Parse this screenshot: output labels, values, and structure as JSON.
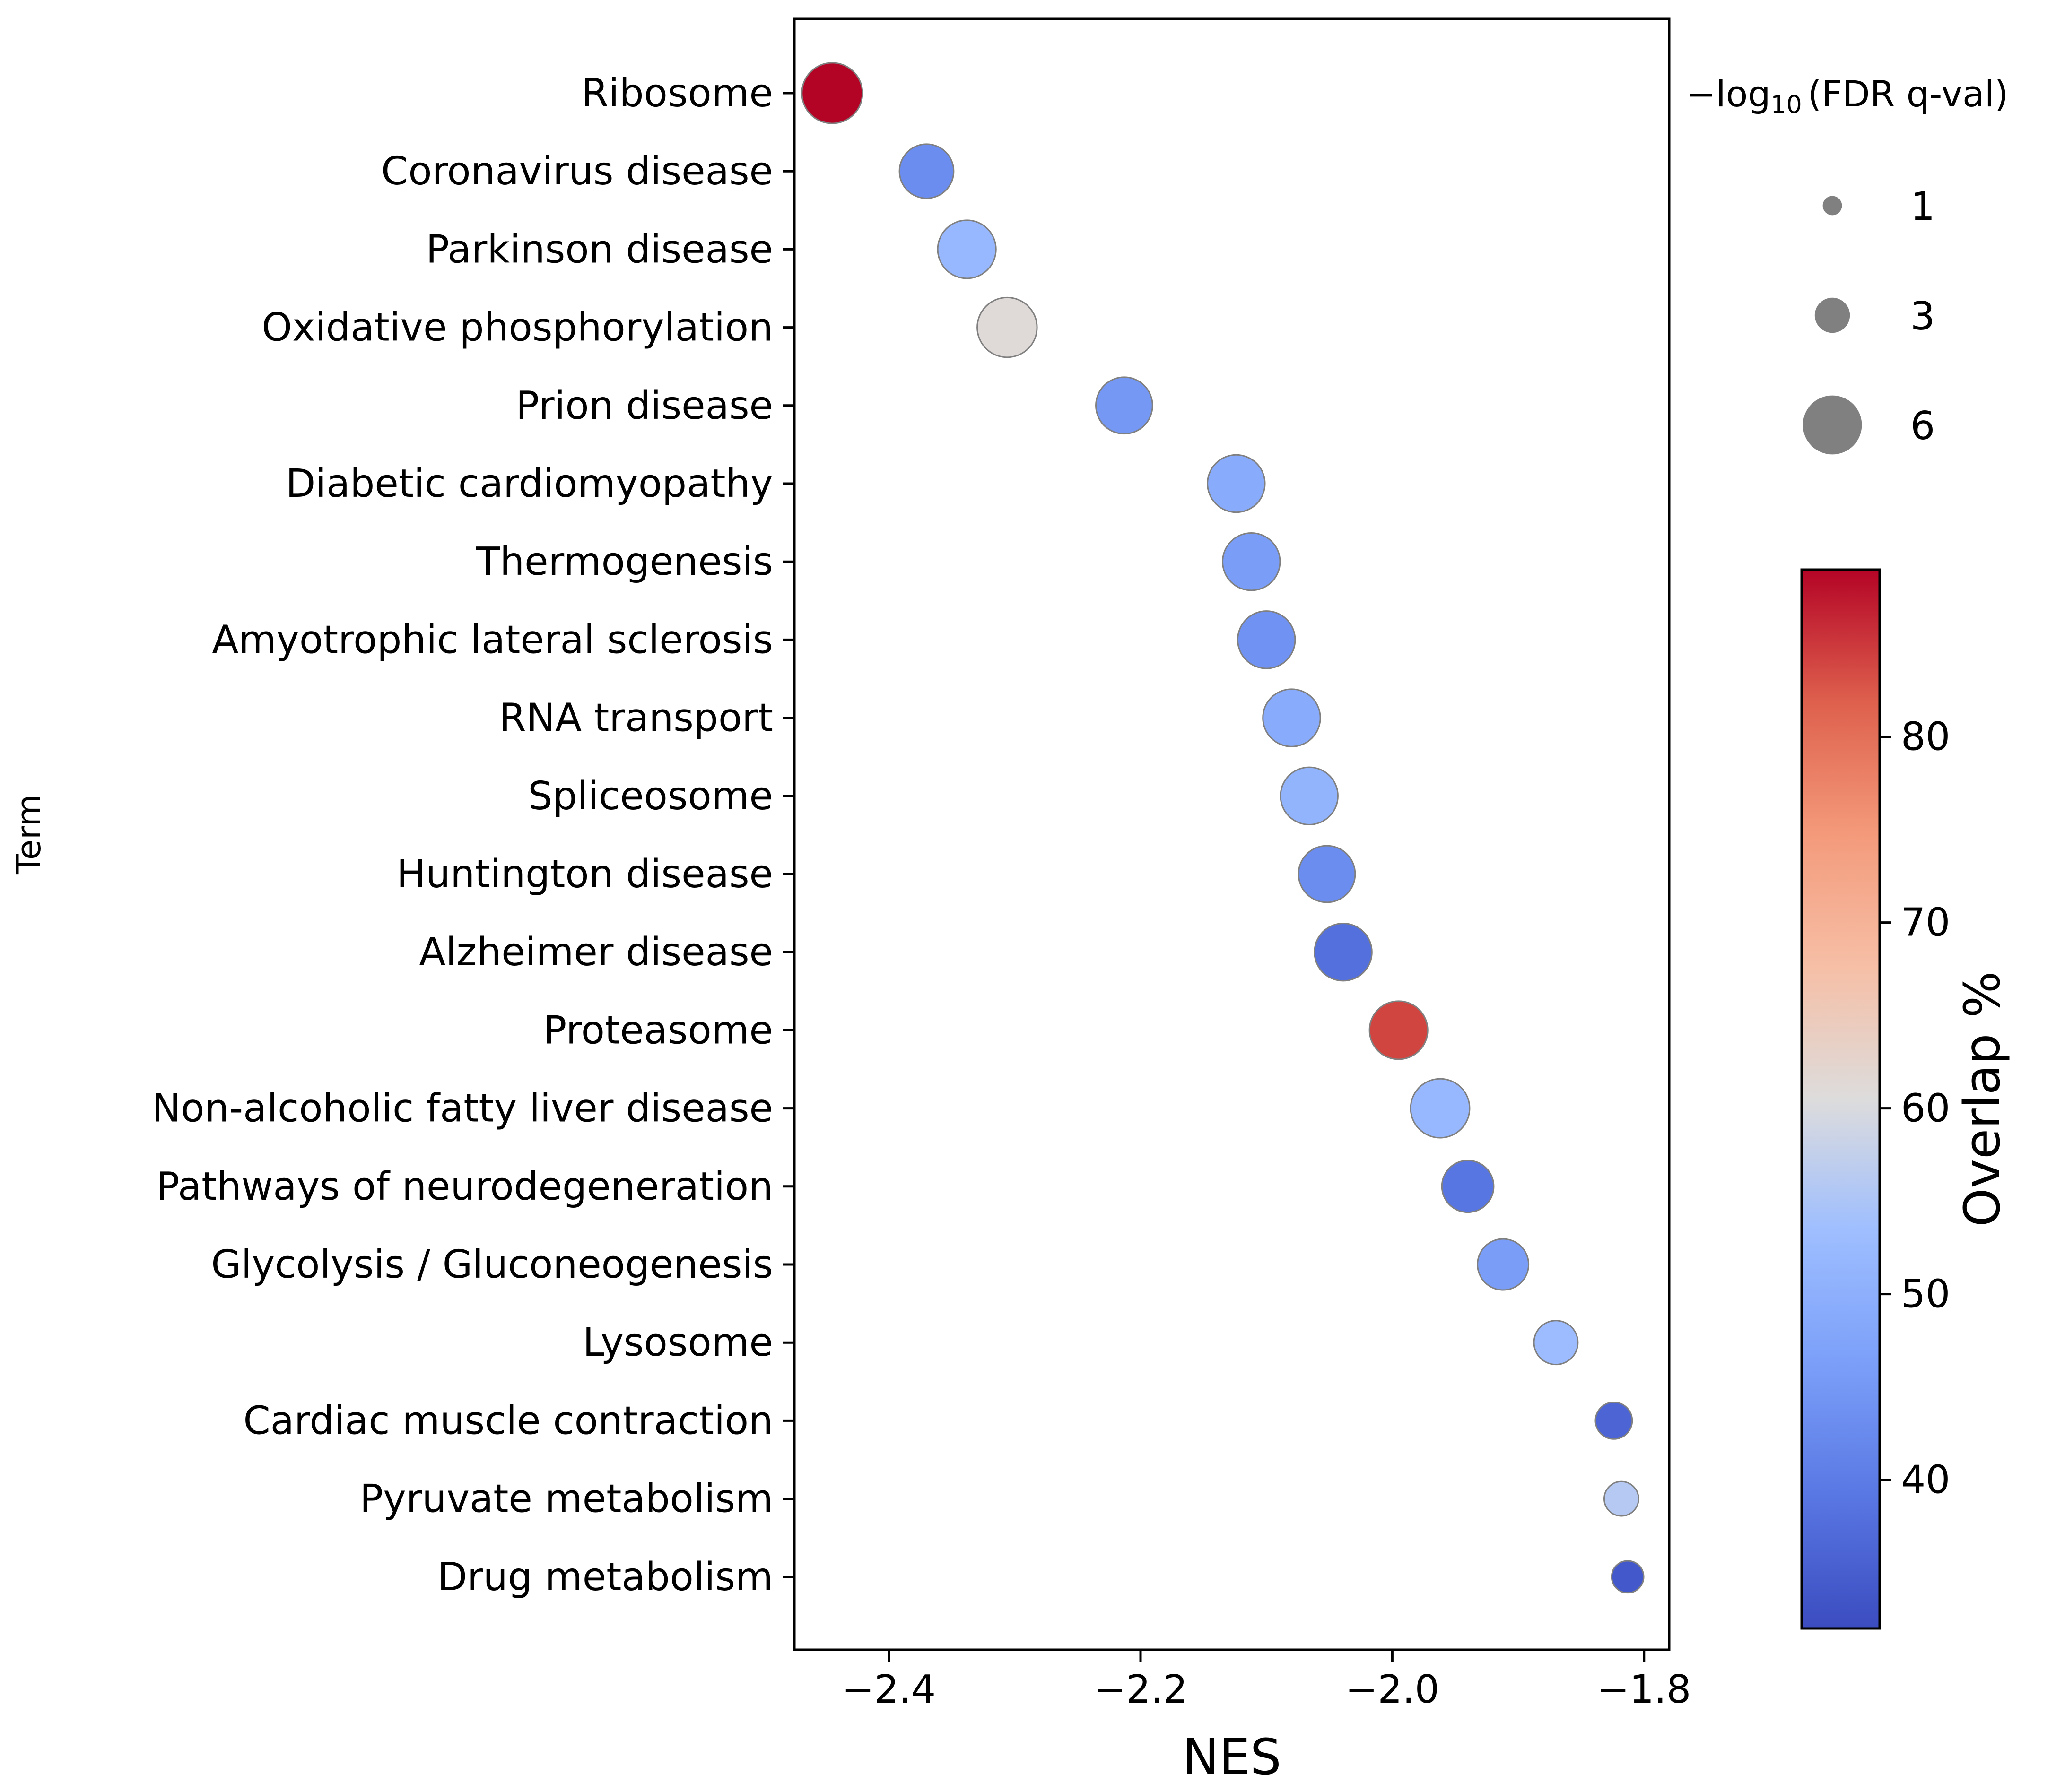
{
  "chart_data": {
    "type": "scatter",
    "title": "",
    "xlabel": "NES",
    "ylabel": "Term",
    "xlim": [
      -2.475,
      -1.78
    ],
    "xticks": [
      -2.4,
      -2.2,
      -2.0,
      -1.8
    ],
    "xtick_labels": [
      "−2.4",
      "−2.2",
      "−2.0",
      "−1.8"
    ],
    "grid": false,
    "points": [
      {
        "term": "Ribosome",
        "nes": -2.445,
        "neg_log10_fdr": 6.2,
        "overlap_pct": 89
      },
      {
        "term": "Coronavirus disease",
        "nes": -2.37,
        "neg_log10_fdr": 5.4,
        "overlap_pct": 43
      },
      {
        "term": "Parkinson disease",
        "nes": -2.338,
        "neg_log10_fdr": 5.9,
        "overlap_pct": 52
      },
      {
        "term": "Oxidative phosphorylation",
        "nes": -2.306,
        "neg_log10_fdr": 6.1,
        "overlap_pct": 61
      },
      {
        "term": "Prion disease",
        "nes": -2.213,
        "neg_log10_fdr": 5.7,
        "overlap_pct": 45
      },
      {
        "term": "Diabetic cardiomyopathy",
        "nes": -2.124,
        "neg_log10_fdr": 5.8,
        "overlap_pct": 49
      },
      {
        "term": "Thermogenesis",
        "nes": -2.112,
        "neg_log10_fdr": 5.8,
        "overlap_pct": 46
      },
      {
        "term": "Amyotrophic lateral sclerosis",
        "nes": -2.1,
        "neg_log10_fdr": 5.8,
        "overlap_pct": 44
      },
      {
        "term": "RNA transport",
        "nes": -2.08,
        "neg_log10_fdr": 5.8,
        "overlap_pct": 49
      },
      {
        "term": "Spliceosome",
        "nes": -2.066,
        "neg_log10_fdr": 5.8,
        "overlap_pct": 51
      },
      {
        "term": "Huntington disease",
        "nes": -2.052,
        "neg_log10_fdr": 5.7,
        "overlap_pct": 43
      },
      {
        "term": "Alzheimer disease",
        "nes": -2.039,
        "neg_log10_fdr": 5.8,
        "overlap_pct": 38
      },
      {
        "term": "Proteasome",
        "nes": -1.995,
        "neg_log10_fdr": 5.9,
        "overlap_pct": 84
      },
      {
        "term": "Non-alcoholic fatty liver disease",
        "nes": -1.962,
        "neg_log10_fdr": 6.0,
        "overlap_pct": 52
      },
      {
        "term": "Pathways of neurodegeneration",
        "nes": -1.94,
        "neg_log10_fdr": 5.1,
        "overlap_pct": 39
      },
      {
        "term": "Glycolysis / Gluconeogenesis",
        "nes": -1.912,
        "neg_log10_fdr": 5.0,
        "overlap_pct": 46
      },
      {
        "term": "Lysosome",
        "nes": -1.87,
        "neg_log10_fdr": 4.1,
        "overlap_pct": 53
      },
      {
        "term": "Cardiac muscle contraction",
        "nes": -1.824,
        "neg_log10_fdr": 3.2,
        "overlap_pct": 36
      },
      {
        "term": "Pyruvate metabolism",
        "nes": -1.818,
        "neg_log10_fdr": 2.9,
        "overlap_pct": 56
      },
      {
        "term": "Drug metabolism",
        "nes": -1.813,
        "neg_log10_fdr": 2.6,
        "overlap_pct": 34
      }
    ],
    "size_legend": {
      "title_prefix": "−log",
      "title_subscript": "10",
      "title_suffix": "(FDR q-val)",
      "entries": [
        {
          "label": "1",
          "value": 1
        },
        {
          "label": "3",
          "value": 3
        },
        {
          "label": "6",
          "value": 6
        }
      ],
      "placement": "top-right, outside axes"
    },
    "colorbar": {
      "label": "Overlap %",
      "colormap": "coolwarm",
      "min": 32,
      "max": 89,
      "ticks": [
        40,
        50,
        60,
        70,
        80
      ],
      "tick_labels": [
        "40",
        "50",
        "60",
        "70",
        "80"
      ],
      "placement": "right"
    },
    "colors": {
      "point_edge": "#808080",
      "legend_marker": "#808080",
      "axis": "#000000"
    }
  }
}
